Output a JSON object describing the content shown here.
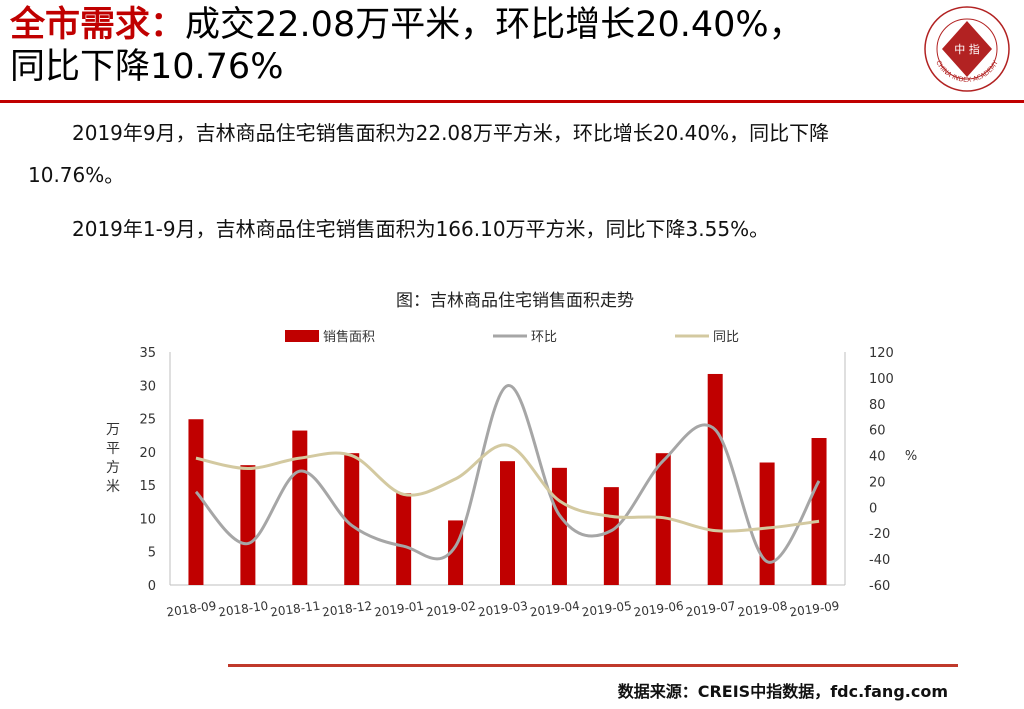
{
  "header": {
    "title_prefix": "全市需求：",
    "title_rest_line1": "成交22.08万平米，环比增长20.40%，",
    "title_line2": "同比下降10.76%",
    "accent_color": "#c00000",
    "logo_icon": "china-index-academy-seal-icon",
    "logo_center_text": "中 指",
    "logo_ring_text": "CHINA INDEX ACADEMY"
  },
  "body": {
    "para1_line1": "2019年9月，吉林商品住宅销售面积为22.08万平方米，环比增长20.40%，同比下降",
    "para1_line2": "10.76%。",
    "para2": "2019年1-9月，吉林商品住宅销售面积为166.10万平方米，同比下降3.55%。"
  },
  "chart_data": {
    "type": "bar",
    "title": "图：吉林商品住宅销售面积走势",
    "categories": [
      "2018-09",
      "2018-10",
      "2018-11",
      "2018-12",
      "2019-01",
      "2019-02",
      "2019-03",
      "2019-04",
      "2019-05",
      "2019-06",
      "2019-07",
      "2019-08",
      "2019-09"
    ],
    "series": [
      {
        "name": "销售面积",
        "kind": "bar",
        "axis": "left",
        "color": "#c00000",
        "values": [
          24.9,
          18.0,
          23.2,
          19.8,
          13.8,
          9.7,
          18.6,
          17.6,
          14.7,
          19.8,
          31.7,
          18.4,
          22.08
        ]
      },
      {
        "name": "环比",
        "kind": "line",
        "axis": "right",
        "color": "#a6a6a6",
        "values": [
          12,
          -28,
          28,
          -14,
          -30,
          -30,
          94,
          -6,
          -18,
          36,
          60,
          -42,
          20.4
        ]
      },
      {
        "name": "同比",
        "kind": "line",
        "axis": "right",
        "color": "#d3c9a0",
        "values": [
          38,
          30,
          38,
          40,
          10,
          22,
          48,
          5,
          -7,
          -8,
          -18,
          -16,
          -10.76
        ]
      }
    ],
    "ylabel": "万平方米",
    "y2label": "%",
    "ylim": [
      0,
      35
    ],
    "yticks": [
      0,
      5,
      10,
      15,
      20,
      25,
      30,
      35
    ],
    "y2lim": [
      -60,
      120
    ],
    "y2ticks": [
      -60,
      -40,
      -20,
      0,
      20,
      40,
      60,
      80,
      100,
      120
    ],
    "legend_position": "top",
    "grid": false
  },
  "footer": {
    "source": "数据来源：CREIS中指数据，fdc.fang.com",
    "rule_color": "#c0392b"
  }
}
